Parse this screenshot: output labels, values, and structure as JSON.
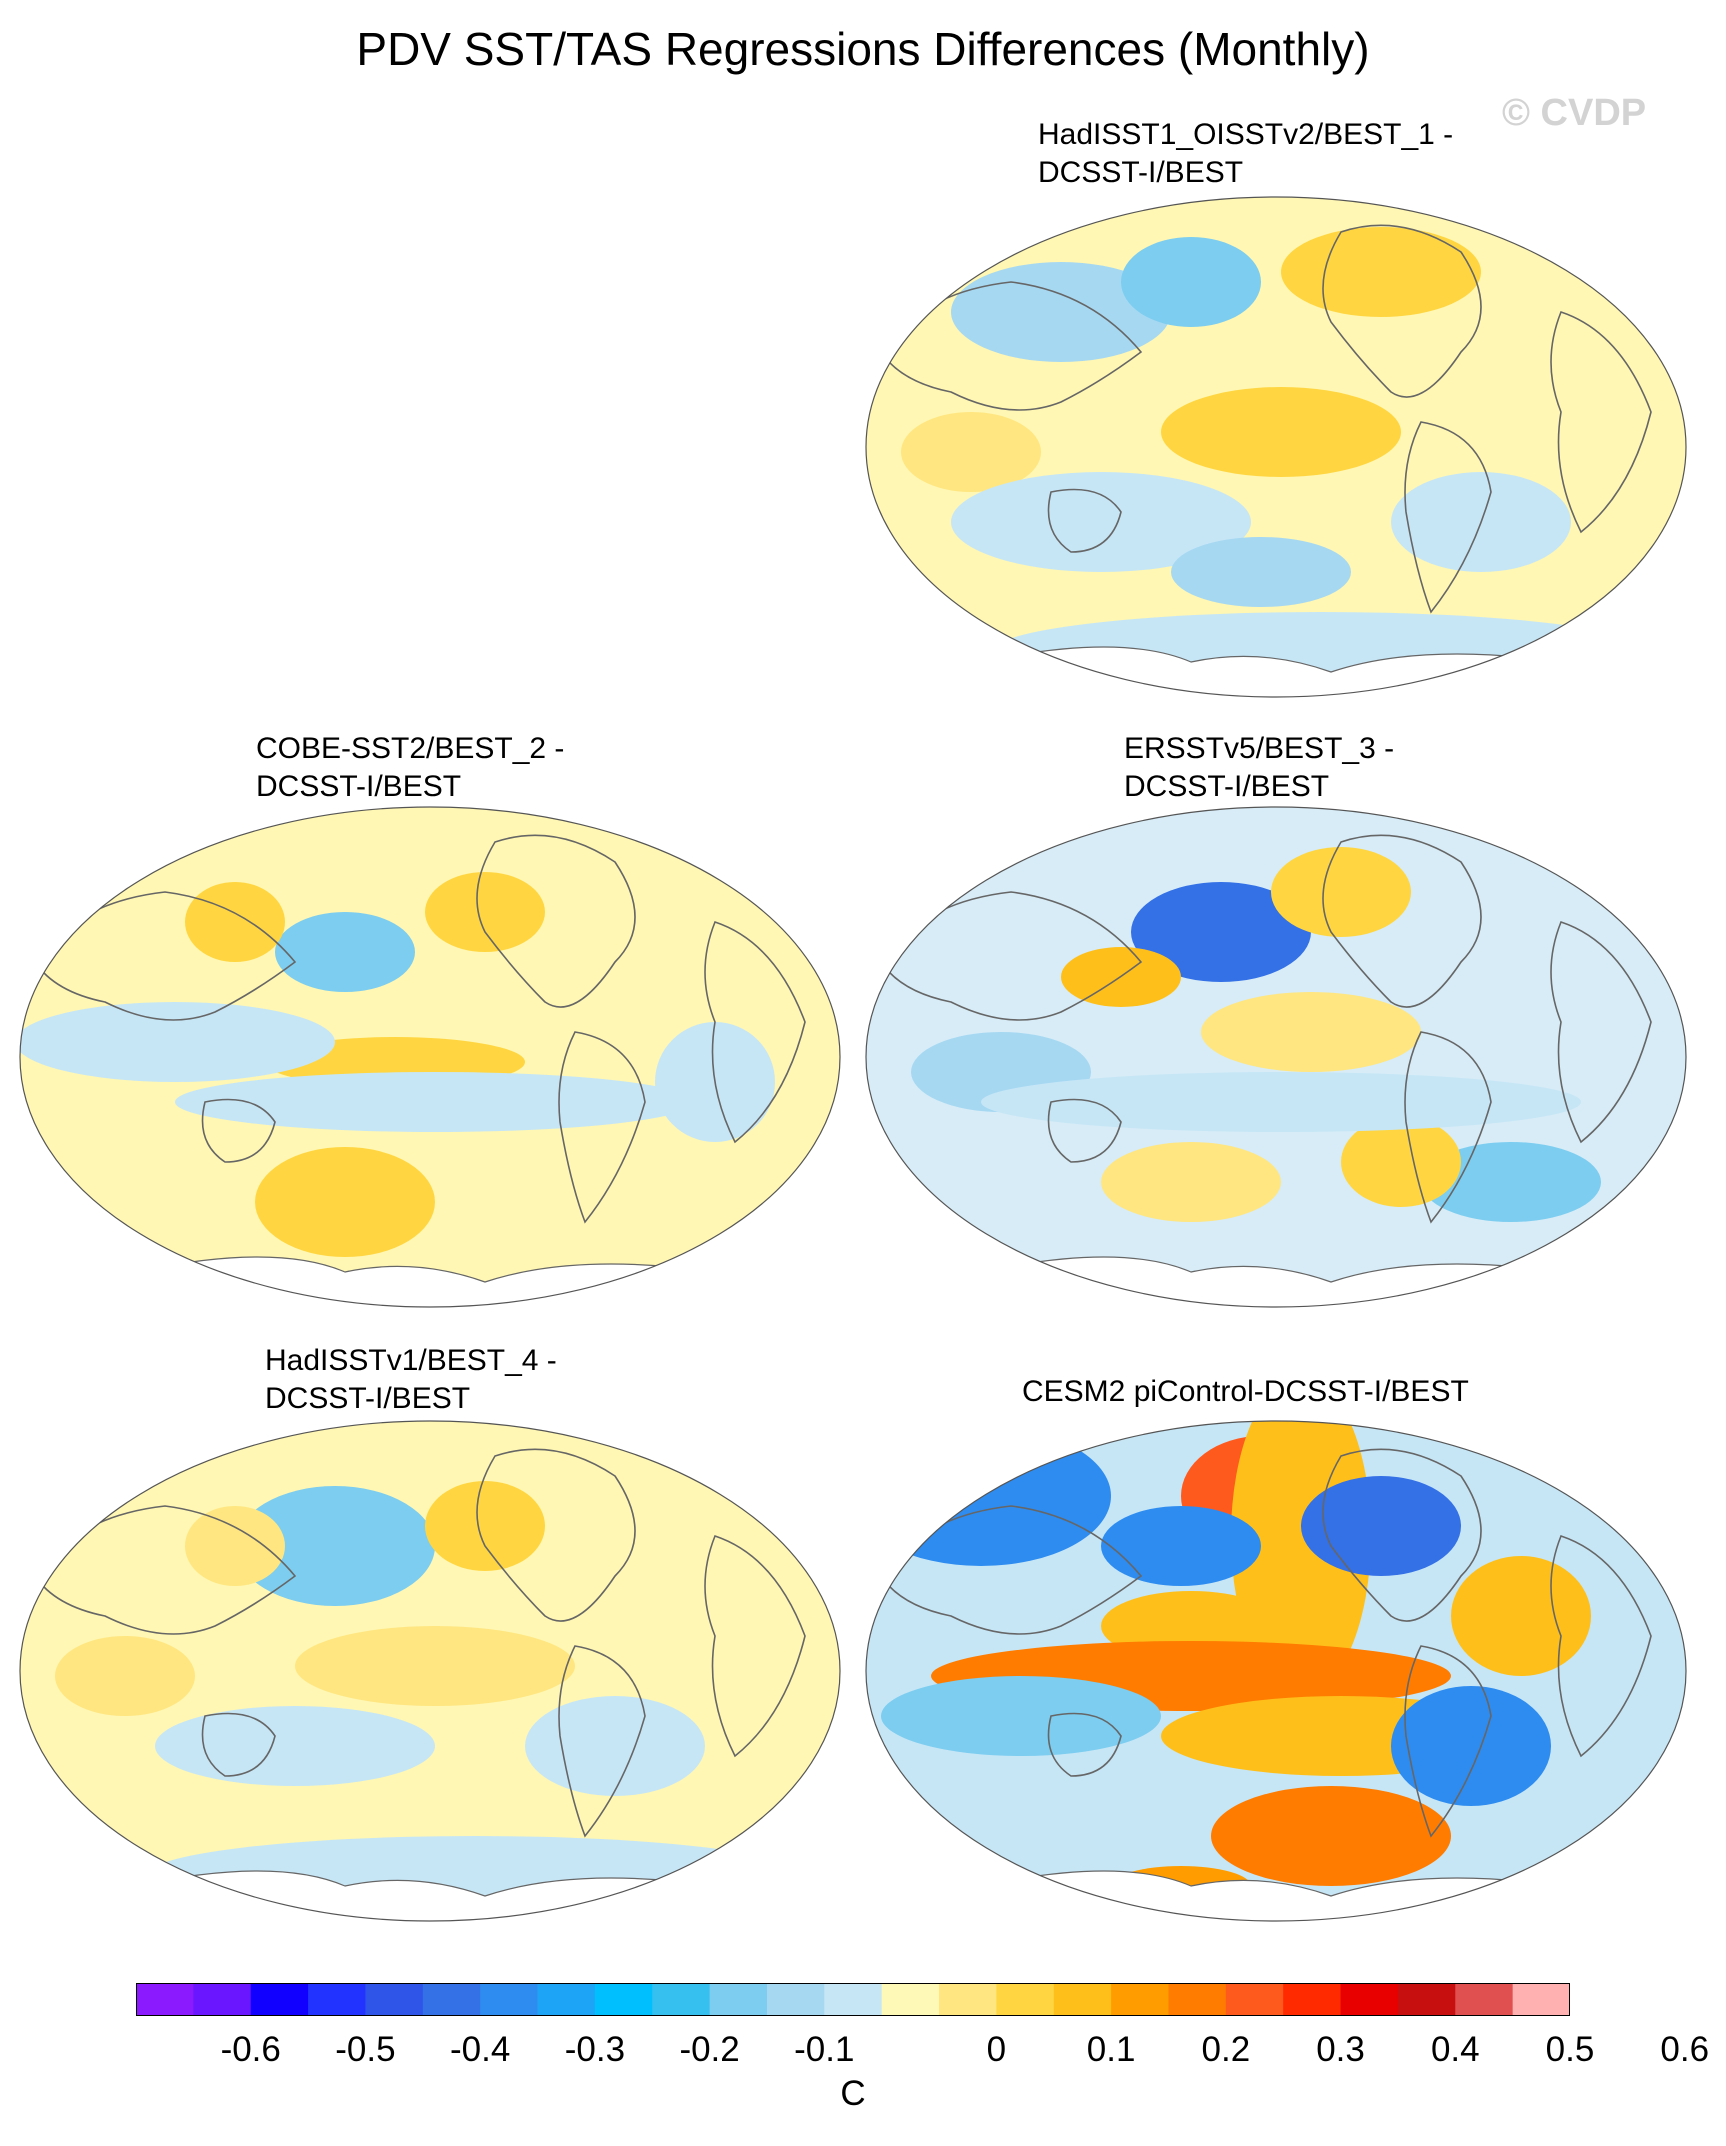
{
  "title": "PDV SST/TAS Regressions Differences (Monthly)",
  "watermark": "© CVDP",
  "panels": [
    {
      "id": "p1",
      "label": "HadISST1_OISSTv2/BEST_1 -\nDCSST-I/BEST"
    },
    {
      "id": "p2",
      "label": "COBE-SST2/BEST_2 -\nDCSST-I/BEST"
    },
    {
      "id": "p3",
      "label": "ERSSTv5/BEST_3 -\nDCSST-I/BEST"
    },
    {
      "id": "p4",
      "label": "HadISSTv1/BEST_4 -\nDCSST-I/BEST"
    },
    {
      "id": "p5",
      "label": "CESM2 piControl-DCSST-I/BEST"
    }
  ],
  "colorbar": {
    "unit": "C",
    "tick_labels": [
      "-0.6",
      "-0.5",
      "-0.4",
      "-0.3",
      "-0.2",
      "-0.1",
      "0",
      "0.1",
      "0.2",
      "0.3",
      "0.4",
      "0.5",
      "0.6"
    ],
    "colors": [
      "#8b1aff",
      "#6a17ff",
      "#1100ff",
      "#2233ff",
      "#2e55e8",
      "#3470e6",
      "#2e8cf0",
      "#1ea4f6",
      "#00bfff",
      "#35c0f0",
      "#7ccdf0",
      "#a6d8f2",
      "#c6e6f6",
      "#fff9b8",
      "#ffe680",
      "#ffd641",
      "#ffbf1a",
      "#ff9d00",
      "#ff7c00",
      "#ff5a1e",
      "#ff2a00",
      "#e80000",
      "#c80f0f",
      "#e05050",
      "#ffb0b0"
    ]
  },
  "colors": {
    "land_outline": "#666666",
    "map_background": "#fff7b3"
  }
}
